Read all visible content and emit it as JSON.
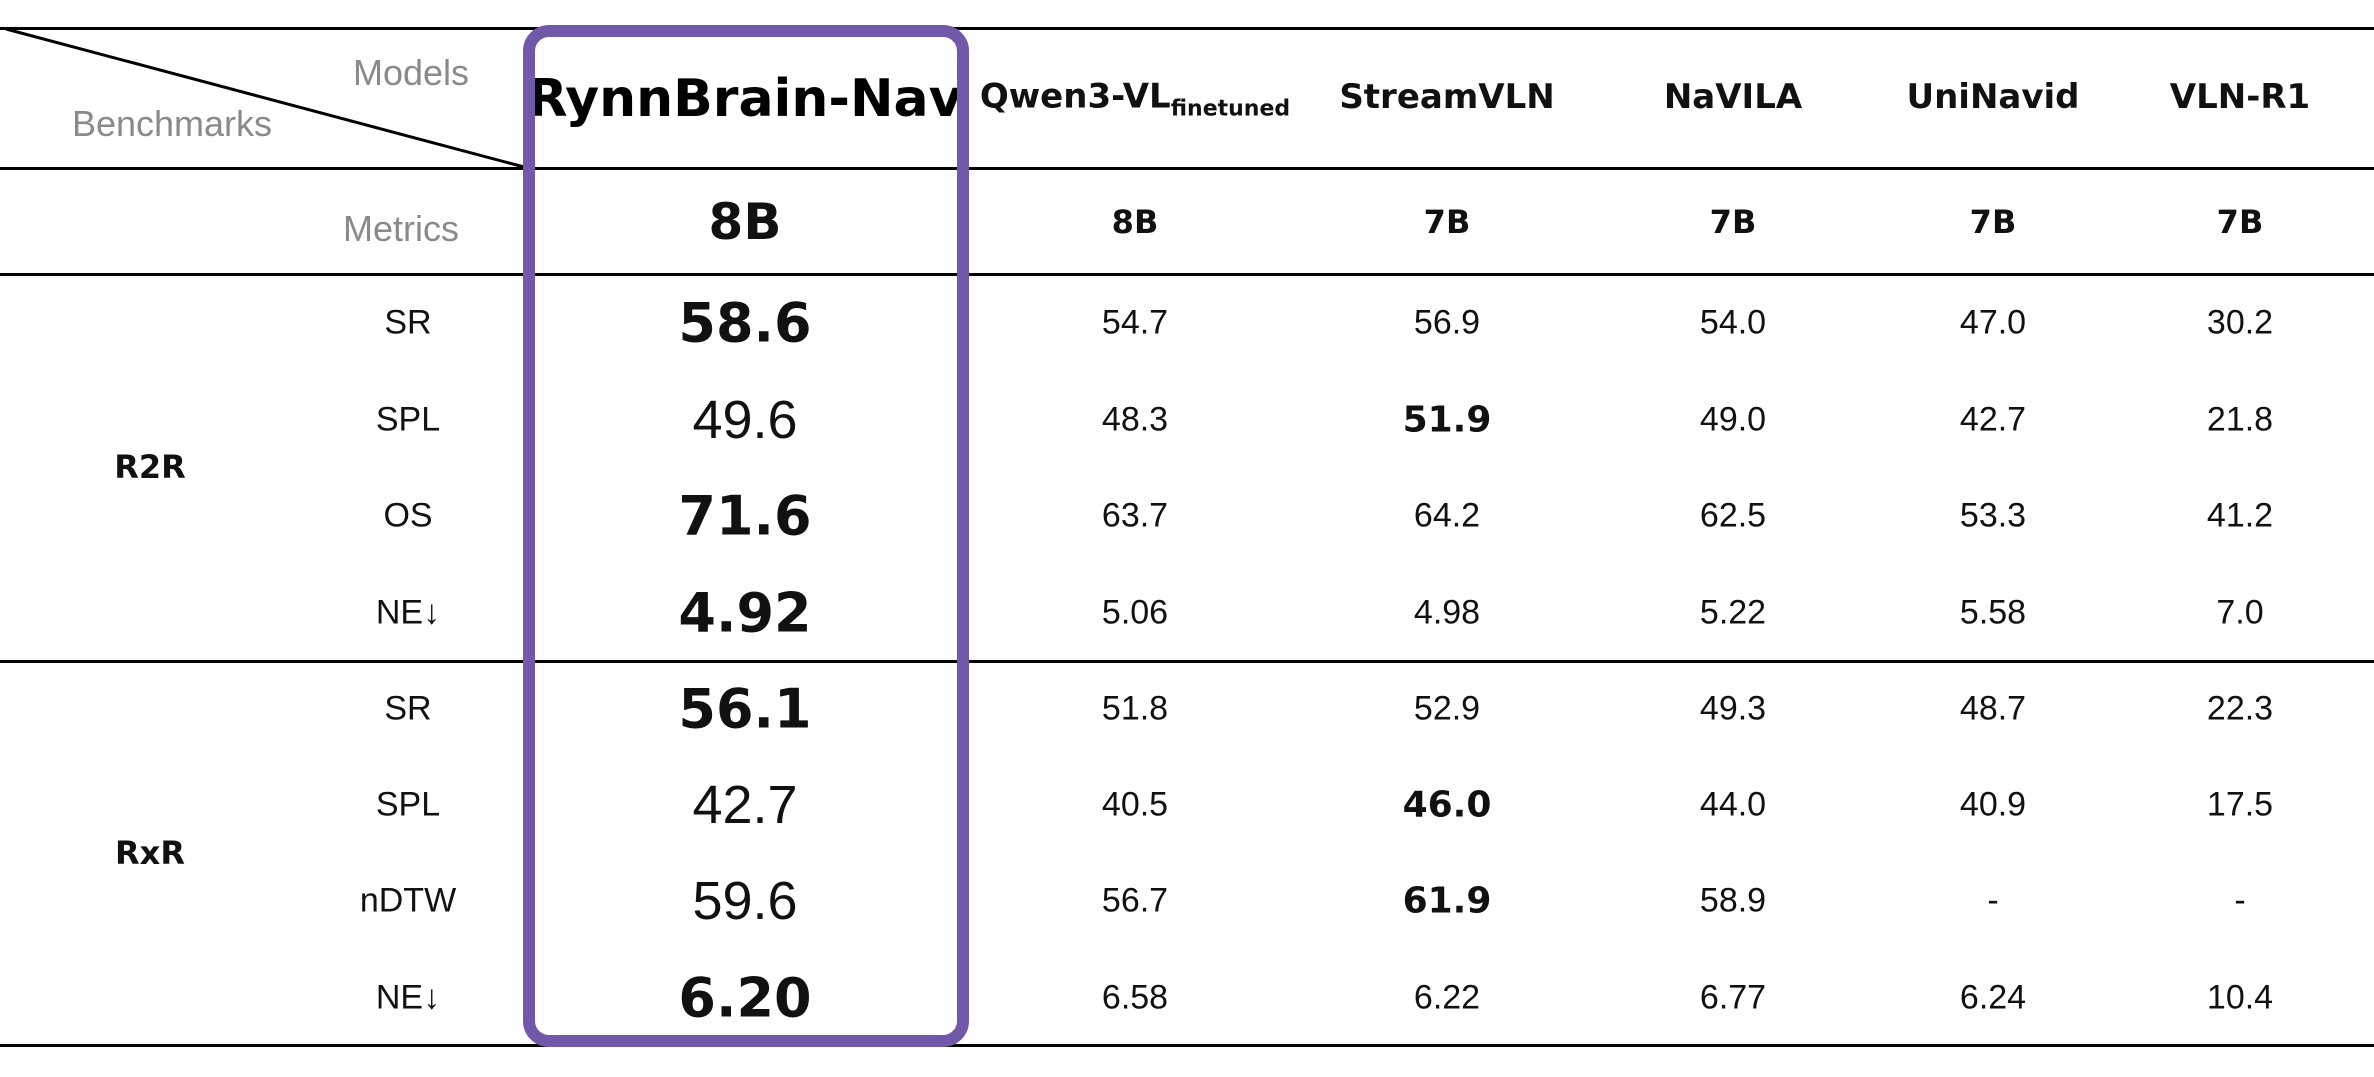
{
  "header": {
    "models_label": "Models",
    "benchmarks_label": "Benchmarks",
    "metrics_label": "Metrics",
    "highlighted_model": "RynnBrain-Nav",
    "highlighted_size": "8B",
    "highlight_color": "#7158a8",
    "models": [
      {
        "name": "Qwen3-VL",
        "subscript": "finetuned",
        "size": "8B"
      },
      {
        "name": "StreamVLN",
        "subscript": "",
        "size": "7B"
      },
      {
        "name": "NaVILA",
        "subscript": "",
        "size": "7B"
      },
      {
        "name": "UniNavid",
        "subscript": "",
        "size": "7B"
      },
      {
        "name": "VLN-R1",
        "subscript": "",
        "size": "7B"
      }
    ]
  },
  "groups": [
    {
      "benchmark": "R2R",
      "rows": [
        {
          "metric": "SR",
          "rynn": "58.6",
          "rynn_bold": true,
          "values": [
            "54.7",
            "56.9",
            "54.0",
            "47.0",
            "30.2"
          ],
          "bold": [
            false,
            false,
            false,
            false,
            false
          ]
        },
        {
          "metric": "SPL",
          "rynn": "49.6",
          "rynn_bold": false,
          "values": [
            "48.3",
            "51.9",
            "49.0",
            "42.7",
            "21.8"
          ],
          "bold": [
            false,
            true,
            false,
            false,
            false
          ]
        },
        {
          "metric": "OS",
          "rynn": "71.6",
          "rynn_bold": true,
          "values": [
            "63.7",
            "64.2",
            "62.5",
            "53.3",
            "41.2"
          ],
          "bold": [
            false,
            false,
            false,
            false,
            false
          ]
        },
        {
          "metric": "NE↓",
          "rynn": "4.92",
          "rynn_bold": true,
          "values": [
            "5.06",
            "4.98",
            "5.22",
            "5.58",
            "7.0"
          ],
          "bold": [
            false,
            false,
            false,
            false,
            false
          ]
        }
      ]
    },
    {
      "benchmark": "RxR",
      "rows": [
        {
          "metric": "SR",
          "rynn": "56.1",
          "rynn_bold": true,
          "values": [
            "51.8",
            "52.9",
            "49.3",
            "48.7",
            "22.3"
          ],
          "bold": [
            false,
            false,
            false,
            false,
            false
          ]
        },
        {
          "metric": "SPL",
          "rynn": "42.7",
          "rynn_bold": false,
          "values": [
            "40.5",
            "46.0",
            "44.0",
            "40.9",
            "17.5"
          ],
          "bold": [
            false,
            true,
            false,
            false,
            false
          ]
        },
        {
          "metric": "nDTW",
          "rynn": "59.6",
          "rynn_bold": false,
          "values": [
            "56.7",
            "61.9",
            "58.9",
            "-",
            "-"
          ],
          "bold": [
            false,
            true,
            false,
            false,
            false
          ]
        },
        {
          "metric": "NE↓",
          "rynn": "6.20",
          "rynn_bold": true,
          "values": [
            "6.58",
            "6.22",
            "6.77",
            "6.24",
            "10.4"
          ],
          "bold": [
            false,
            false,
            false,
            false,
            false
          ]
        }
      ]
    }
  ]
}
